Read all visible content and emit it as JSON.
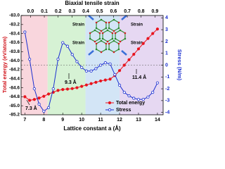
{
  "chart_data": {
    "type": "line",
    "title": "Biaxial tensile strain",
    "x_label": "Lattice constant a (Å)",
    "y_label": "Total energy (eV/atom)",
    "y2_label": "Stress (N/m)",
    "x": [
      7,
      7.25,
      7.5,
      7.75,
      8,
      8.25,
      8.5,
      8.75,
      9,
      9.25,
      9.5,
      9.75,
      10,
      10.25,
      10.5,
      10.75,
      11,
      11.25,
      11.5,
      11.75,
      12,
      12.25,
      12.5,
      12.75,
      13,
      13.25,
      13.5,
      13.75,
      14
    ],
    "series": [
      {
        "name": "Total energy",
        "color": "#e8141e",
        "values": [
          -84.8,
          -84.88,
          -84.86,
          -84.83,
          -84.79,
          -84.74,
          -84.7,
          -84.66,
          -84.64,
          -84.63,
          -84.62,
          -84.6,
          -84.57,
          -84.54,
          -84.51,
          -84.48,
          -84.45,
          -84.43,
          -84.41,
          -84.33,
          -84.22,
          -84.1,
          -83.98,
          -83.86,
          -83.74,
          -83.62,
          -83.51,
          -83.4,
          -83.3
        ]
      },
      {
        "name": "Stress",
        "color": "#1a2fd0",
        "axis": "y2",
        "values": [
          2.8,
          0.5,
          -2.0,
          -3.3,
          -3.9,
          -3.6,
          -2.0,
          0.5,
          1.9,
          1.6,
          0.9,
          0.3,
          -0.2,
          -0.5,
          -0.5,
          -0.3,
          0.0,
          0.2,
          0.1,
          -0.8,
          -1.7,
          -2.3,
          -2.6,
          -2.8,
          -2.9,
          -2.9,
          -2.7,
          -2.3,
          -1.5
        ]
      }
    ],
    "xlim": [
      6.8,
      14.3
    ],
    "xticks": [
      7,
      8,
      9,
      10,
      11,
      12,
      13,
      14
    ],
    "x2lim": [
      -0.068,
      0.959
    ],
    "x2ticks": [
      {
        "value": 0,
        "label": "0.0"
      },
      0.1,
      0.2,
      0.3,
      0.4,
      0.5,
      0.6,
      0.7,
      0.8,
      0.9
    ],
    "ylim": [
      -85.2,
      -83.0
    ],
    "yticks": [
      {
        "value": -85.2,
        "label": "-85.2"
      },
      {
        "value": -85.0,
        "label": "-85.0"
      },
      -84.8,
      -84.6,
      -84.4,
      -84.2,
      {
        "value": -84.0,
        "label": "-84.0"
      },
      -83.8,
      -83.6,
      -83.4,
      -83.2,
      {
        "value": -83.0,
        "label": "-83.0"
      }
    ],
    "y2lim": [
      -4.2,
      4.2
    ],
    "y2ticks": [
      -4,
      -3,
      -2,
      -1,
      0,
      1,
      2,
      3,
      4
    ],
    "regions": [
      {
        "range": [
          6.8,
          8.2
        ],
        "color": "#f9d6dd"
      },
      {
        "range": [
          8.2,
          10.2
        ],
        "color": "#d6f2d4"
      },
      {
        "range": [
          10.2,
          12.0
        ],
        "color": "#d3e5f6"
      },
      {
        "range": [
          12.0,
          14.3
        ],
        "color": "#e6d8f2"
      }
    ],
    "annotations": [
      "7.3 Å",
      "9.3 Å",
      "11.4 Å"
    ],
    "inset_labels": [
      "Strain",
      "Strain",
      "Strain",
      "Strain"
    ],
    "legend": "lower right"
  }
}
